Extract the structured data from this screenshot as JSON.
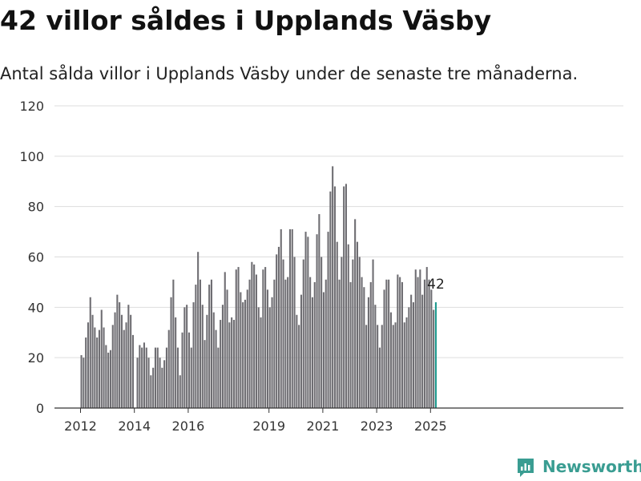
{
  "header": {
    "title": "42 villor såldes i Upplands Väsby",
    "subtitle": "Antal sålda villor i Upplands Väsby under de senaste tre månaderna."
  },
  "brand": {
    "name": "Newsworthy",
    "color": "#3a9d92",
    "icon": "newsworthy-logo-icon"
  },
  "colors": {
    "bar": "#6f6e73",
    "highlight": "#1f9a8f",
    "grid": "#dddddd"
  },
  "chart_data": {
    "type": "bar",
    "title": "",
    "xlabel": "",
    "ylabel": "",
    "x_start": "2012-01",
    "interval": "month",
    "ylim": [
      0,
      120
    ],
    "yticks": [
      0,
      20,
      40,
      60,
      80,
      100,
      120
    ],
    "xticks": [
      "2012",
      "2014",
      "2016",
      "2019",
      "2021",
      "2023",
      "2025"
    ],
    "grid": true,
    "highlight_last": true,
    "last_label": "42",
    "values": [
      21,
      20,
      28,
      34,
      44,
      37,
      32,
      28,
      31,
      39,
      32,
      25,
      22,
      23,
      33,
      38,
      45,
      42,
      37,
      31,
      34,
      41,
      37,
      29,
      0,
      20,
      25,
      24,
      26,
      24,
      20,
      13,
      16,
      24,
      24,
      20,
      16,
      19,
      24,
      31,
      44,
      51,
      36,
      24,
      13,
      30,
      40,
      41,
      30,
      24,
      42,
      49,
      62,
      51,
      41,
      27,
      37,
      49,
      51,
      38,
      31,
      24,
      35,
      41,
      54,
      47,
      34,
      36,
      35,
      55,
      56,
      46,
      42,
      43,
      47,
      51,
      58,
      57,
      53,
      40,
      36,
      55,
      56,
      47,
      40,
      44,
      51,
      61,
      64,
      71,
      59,
      51,
      52,
      71,
      71,
      60,
      37,
      33,
      45,
      59,
      70,
      68,
      52,
      44,
      50,
      69,
      77,
      60,
      46,
      51,
      70,
      86,
      96,
      88,
      66,
      51,
      60,
      88,
      89,
      65,
      50,
      59,
      75,
      66,
      60,
      52,
      48,
      33,
      44,
      50,
      59,
      41,
      33,
      24,
      33,
      47,
      51,
      51,
      38,
      33,
      34,
      53,
      52,
      50,
      34,
      36,
      40,
      45,
      42,
      55,
      52,
      55,
      45,
      51,
      56,
      51,
      47,
      39,
      42
    ]
  }
}
